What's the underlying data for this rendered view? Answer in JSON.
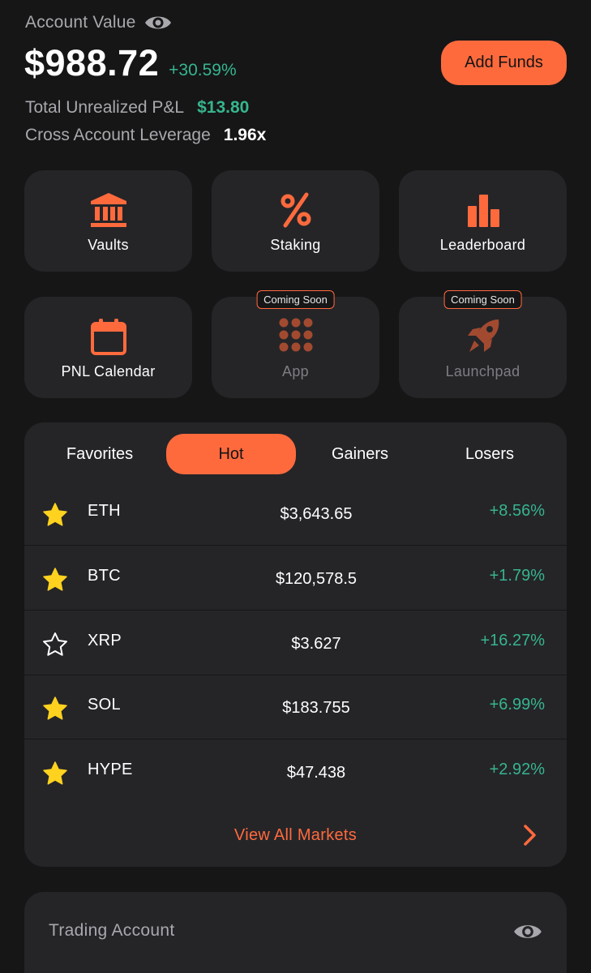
{
  "header": {
    "account_value_label": "Account Value",
    "balance": "$988.72",
    "balance_change": "+30.59%",
    "add_funds_label": "Add Funds",
    "unrealized_label": "Total Unrealized P&L",
    "unrealized_value": "$13.80",
    "leverage_label": "Cross Account Leverage",
    "leverage_value": "1.96x"
  },
  "tiles": [
    {
      "label": "Vaults",
      "icon": "bank-icon"
    },
    {
      "label": "Staking",
      "icon": "percent-icon"
    },
    {
      "label": "Leaderboard",
      "icon": "bar-chart-icon"
    },
    {
      "label": "PNL Calendar",
      "icon": "calendar-icon"
    },
    {
      "label": "App",
      "icon": "grid-dots-icon",
      "badge": "Coming Soon"
    },
    {
      "label": "Launchpad",
      "icon": "rocket-icon",
      "badge": "Coming Soon"
    }
  ],
  "markets": {
    "tabs": [
      {
        "label": "Favorites",
        "active": false
      },
      {
        "label": "Hot",
        "active": true
      },
      {
        "label": "Gainers",
        "active": false
      },
      {
        "label": "Losers",
        "active": false
      }
    ],
    "rows": [
      {
        "symbol": "ETH",
        "price": "$3,643.65",
        "change": "+8.56%",
        "favorite": true
      },
      {
        "symbol": "BTC",
        "price": "$120,578.5",
        "change": "+1.79%",
        "favorite": true
      },
      {
        "symbol": "XRP",
        "price": "$3.627",
        "change": "+16.27%",
        "favorite": false
      },
      {
        "symbol": "SOL",
        "price": "$183.755",
        "change": "+6.99%",
        "favorite": true
      },
      {
        "symbol": "HYPE",
        "price": "$47.438",
        "change": "+2.92%",
        "favorite": true
      }
    ],
    "view_all_label": "View All Markets"
  },
  "trading_account": {
    "label": "Trading Account"
  },
  "colors": {
    "accent": "#ff6a3d",
    "positive": "#36b58d",
    "star": "#ffd21f",
    "card": "#252528",
    "background": "#161617"
  }
}
